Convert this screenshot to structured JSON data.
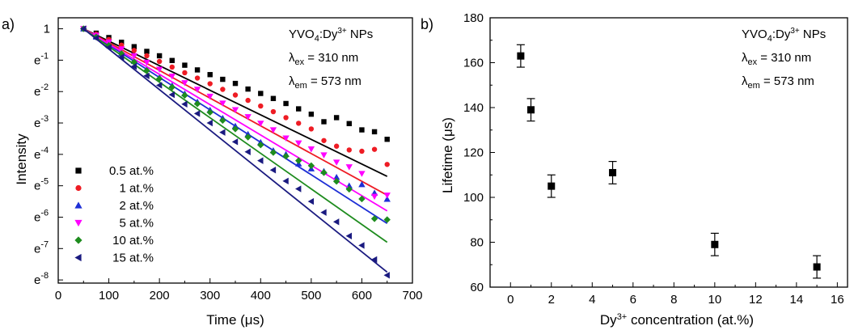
{
  "chart_data": [
    {
      "panel_label": "a)",
      "type": "scatter",
      "xlabel": "Time (μs)",
      "ylabel": "Intensity",
      "xlim": [
        0,
        700
      ],
      "xticks": [
        0,
        100,
        200,
        300,
        400,
        500,
        600,
        700
      ],
      "yscale": "log",
      "ylim_ln": [
        -8.1,
        0.35
      ],
      "yticks": [
        {
          "ln": 0,
          "base": "1",
          "exp": ""
        },
        {
          "ln": -1,
          "base": "e",
          "exp": "-1"
        },
        {
          "ln": -2,
          "base": "e",
          "exp": "-2"
        },
        {
          "ln": -3,
          "base": "e",
          "exp": "-3"
        },
        {
          "ln": -4,
          "base": "e",
          "exp": "-4"
        },
        {
          "ln": -5,
          "base": "e",
          "exp": "-5"
        },
        {
          "ln": -6,
          "base": "e",
          "exp": "-6"
        },
        {
          "ln": -7,
          "base": "e",
          "exp": "-7"
        },
        {
          "ln": -8,
          "base": "e",
          "exp": "-8"
        }
      ],
      "annotation": {
        "compound": "YVO",
        "sub4": "4",
        "mid": ":Dy",
        "sup": "3+",
        "end": " NPs",
        "ex_lambda": "λ",
        "ex_sub": "ex",
        "ex_val": " = 310 nm",
        "em_lambda": "λ",
        "em_sub": "em",
        "em_val": " = 573 nm"
      },
      "legend_position": "bottom-left",
      "series": [
        {
          "name": "0.5 at.%",
          "color": "#000000",
          "marker": "square",
          "fit_ln_end": -4.7,
          "points": [
            [
              50,
              0
            ],
            [
              75,
              -0.14
            ],
            [
              100,
              -0.28
            ],
            [
              125,
              -0.43
            ],
            [
              150,
              -0.57
            ],
            [
              175,
              -0.72
            ],
            [
              200,
              -0.86
            ],
            [
              225,
              -1.01
            ],
            [
              250,
              -1.16
            ],
            [
              275,
              -1.31
            ],
            [
              300,
              -1.46
            ],
            [
              325,
              -1.61
            ],
            [
              350,
              -1.74
            ],
            [
              375,
              -1.92
            ],
            [
              400,
              -2.06
            ],
            [
              425,
              -2.22
            ],
            [
              450,
              -2.38
            ],
            [
              475,
              -2.55
            ],
            [
              500,
              -2.72
            ],
            [
              525,
              -2.96
            ],
            [
              550,
              -2.83
            ],
            [
              575,
              -3.02
            ],
            [
              600,
              -3.22
            ],
            [
              625,
              -3.28
            ],
            [
              650,
              -3.52
            ]
          ]
        },
        {
          "name": "1 at.%",
          "color": "#ee1c24",
          "marker": "circle",
          "fit_ln_end": -5.3,
          "points": [
            [
              50,
              0
            ],
            [
              75,
              -0.17
            ],
            [
              100,
              -0.34
            ],
            [
              125,
              -0.52
            ],
            [
              150,
              -0.69
            ],
            [
              175,
              -0.86
            ],
            [
              200,
              -1.04
            ],
            [
              225,
              -1.22
            ],
            [
              250,
              -1.4
            ],
            [
              275,
              -1.57
            ],
            [
              300,
              -1.75
            ],
            [
              325,
              -1.93
            ],
            [
              350,
              -2.11
            ],
            [
              375,
              -2.28
            ],
            [
              400,
              -2.46
            ],
            [
              425,
              -2.64
            ],
            [
              450,
              -2.83
            ],
            [
              475,
              -3.01
            ],
            [
              500,
              -3.19
            ],
            [
              525,
              -3.56
            ],
            [
              550,
              -3.74
            ],
            [
              575,
              -3.86
            ],
            [
              600,
              -3.9
            ],
            [
              625,
              -3.84
            ],
            [
              650,
              -4.32
            ]
          ]
        },
        {
          "name": "2 at.%",
          "color": "#1e2fd6",
          "marker": "triangle-up",
          "fit_ln_end": -6.2,
          "points": [
            [
              50,
              0
            ],
            [
              75,
              -0.26
            ],
            [
              100,
              -0.52
            ],
            [
              125,
              -0.78
            ],
            [
              150,
              -1.04
            ],
            [
              175,
              -1.29
            ],
            [
              200,
              -1.55
            ],
            [
              225,
              -1.81
            ],
            [
              250,
              -2.07
            ],
            [
              275,
              -2.33
            ],
            [
              300,
              -2.59
            ],
            [
              325,
              -2.85
            ],
            [
              350,
              -3.1
            ],
            [
              375,
              -3.36
            ],
            [
              400,
              -3.62
            ],
            [
              425,
              -3.88
            ],
            [
              450,
              -4.0
            ],
            [
              475,
              -4.3
            ],
            [
              500,
              -4.46
            ],
            [
              525,
              -4.54
            ],
            [
              550,
              -4.73
            ],
            [
              575,
              -5.0
            ],
            [
              600,
              -4.96
            ],
            [
              625,
              -5.23
            ],
            [
              650,
              -5.43
            ]
          ]
        },
        {
          "name": "5 at.%",
          "color": "#ff00ff",
          "marker": "triangle-down",
          "fit_ln_end": -5.8,
          "points": [
            [
              50,
              0
            ],
            [
              75,
              -0.21
            ],
            [
              100,
              -0.42
            ],
            [
              125,
              -0.64
            ],
            [
              150,
              -0.86
            ],
            [
              175,
              -1.07
            ],
            [
              200,
              -1.29
            ],
            [
              225,
              -1.51
            ],
            [
              250,
              -1.72
            ],
            [
              275,
              -1.93
            ],
            [
              300,
              -2.15
            ],
            [
              325,
              -2.37
            ],
            [
              350,
              -2.58
            ],
            [
              375,
              -2.8
            ],
            [
              400,
              -3.01
            ],
            [
              425,
              -3.22
            ],
            [
              450,
              -3.48
            ],
            [
              475,
              -3.64
            ],
            [
              500,
              -3.83
            ],
            [
              525,
              -4.02
            ],
            [
              550,
              -4.25
            ],
            [
              575,
              -4.4
            ],
            [
              600,
              -4.61
            ],
            [
              625,
              -5.34
            ],
            [
              650,
              -5.3
            ]
          ]
        },
        {
          "name": "10 at.%",
          "color": "#1e8c1e",
          "marker": "diamond",
          "fit_ln_end": -6.8,
          "points": [
            [
              50,
              0
            ],
            [
              75,
              -0.26
            ],
            [
              100,
              -0.53
            ],
            [
              125,
              -0.79
            ],
            [
              150,
              -1.06
            ],
            [
              175,
              -1.33
            ],
            [
              200,
              -1.59
            ],
            [
              225,
              -1.86
            ],
            [
              250,
              -2.12
            ],
            [
              275,
              -2.39
            ],
            [
              300,
              -2.66
            ],
            [
              325,
              -2.92
            ],
            [
              350,
              -3.19
            ],
            [
              375,
              -3.45
            ],
            [
              400,
              -3.7
            ],
            [
              425,
              -3.94
            ],
            [
              450,
              -4.06
            ],
            [
              475,
              -4.2
            ],
            [
              500,
              -4.36
            ],
            [
              525,
              -4.58
            ],
            [
              550,
              -4.86
            ],
            [
              575,
              -5.11
            ],
            [
              600,
              -5.42
            ],
            [
              625,
              -6.05
            ],
            [
              650,
              -6.08
            ]
          ]
        },
        {
          "name": "15 at.%",
          "color": "#1a1a80",
          "marker": "triangle-left",
          "fit_ln_end": -7.75,
          "points": [
            [
              50,
              0
            ],
            [
              75,
              -0.3
            ],
            [
              100,
              -0.6
            ],
            [
              125,
              -0.9
            ],
            [
              150,
              -1.2
            ],
            [
              175,
              -1.5
            ],
            [
              200,
              -1.8
            ],
            [
              225,
              -2.1
            ],
            [
              250,
              -2.4
            ],
            [
              275,
              -2.7
            ],
            [
              300,
              -3.0
            ],
            [
              325,
              -3.3
            ],
            [
              350,
              -3.6
            ],
            [
              375,
              -3.92
            ],
            [
              400,
              -4.2
            ],
            [
              425,
              -4.5
            ],
            [
              450,
              -4.85
            ],
            [
              475,
              -5.1
            ],
            [
              500,
              -5.5
            ],
            [
              525,
              -5.85
            ],
            [
              550,
              -6.15
            ],
            [
              575,
              -6.6
            ],
            [
              600,
              -6.9
            ],
            [
              625,
              -7.35
            ],
            [
              650,
              -7.85
            ]
          ]
        }
      ]
    },
    {
      "panel_label": "b)",
      "type": "scatter",
      "xlabel": "Dy concentration (at.%)",
      "xlabel_main": "Dy",
      "xlabel_sup": "3+",
      "xlabel_end": " concentration (at.%)",
      "ylabel": "Lifetime (μs)",
      "xlim": [
        -1,
        16.5
      ],
      "ylim": [
        60,
        180
      ],
      "xticks": [
        0,
        2,
        4,
        6,
        8,
        10,
        12,
        14,
        16
      ],
      "yticks": [
        60,
        80,
        100,
        120,
        140,
        160,
        180
      ],
      "annotation": {
        "compound": "YVO",
        "sub4": "4",
        "mid": ":Dy",
        "sup": "3+",
        "end": " NPs",
        "ex_lambda": "λ",
        "ex_sub": "ex",
        "ex_val": " = 310 nm",
        "em_lambda": "λ",
        "em_sub": "em",
        "em_val": " = 573 nm"
      },
      "points": [
        {
          "x": 0.5,
          "y": 163,
          "err": 5
        },
        {
          "x": 1,
          "y": 139,
          "err": 5
        },
        {
          "x": 2,
          "y": 105,
          "err": 5
        },
        {
          "x": 5,
          "y": 111,
          "err": 5
        },
        {
          "x": 10,
          "y": 79,
          "err": 5
        },
        {
          "x": 15,
          "y": 69,
          "err": 5
        }
      ],
      "marker_color": "#000000"
    }
  ]
}
